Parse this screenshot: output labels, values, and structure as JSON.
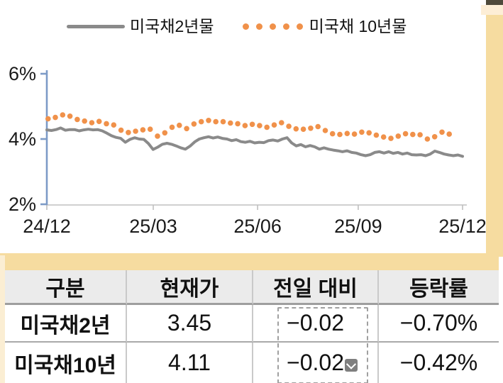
{
  "colors": {
    "orange": "#f0914a",
    "gray_line": "#8a8a8a",
    "axis_blue": "#7d9bc7",
    "axis_gray": "#c0c0c0",
    "tan_band": "#f6dca0",
    "cream": "#fdeed6",
    "dark_corner": "#4f4a3b",
    "header_bg": "#ebebeb"
  },
  "chart_data": {
    "type": "line",
    "title": "",
    "xlabel": "",
    "ylabel": "",
    "ylim": [
      2,
      6
    ],
    "grid": false,
    "legend_position": "top",
    "y_ticks": [
      6,
      4,
      2
    ],
    "y_tick_labels": [
      "6%",
      "4%",
      "2%"
    ],
    "x_ticks": [
      0,
      0.256,
      0.507,
      0.749,
      1
    ],
    "x_tick_labels": [
      "24/12",
      "25/03",
      "25/06",
      "25/09",
      "25/12"
    ],
    "axis_color_y": "#7d9bc7",
    "axis_color_x": "#c0c0c0",
    "series": [
      {
        "name": "미국채2년물",
        "type": "line",
        "color": "#8a8a8a",
        "x_start": 0,
        "x_end": 1,
        "values": [
          4.28,
          4.26,
          4.29,
          4.34,
          4.27,
          4.29,
          4.29,
          4.25,
          4.28,
          4.3,
          4.28,
          4.29,
          4.25,
          4.18,
          4.1,
          4.05,
          4.02,
          3.9,
          3.99,
          4.04,
          4.0,
          3.99,
          3.86,
          3.68,
          3.75,
          3.84,
          3.87,
          3.84,
          3.79,
          3.73,
          3.69,
          3.78,
          3.91,
          4.0,
          4.04,
          4.07,
          4.03,
          4.06,
          4.02,
          4.0,
          3.95,
          3.98,
          3.92,
          3.9,
          3.93,
          3.88,
          3.9,
          3.89,
          3.95,
          3.97,
          3.94,
          4.0,
          4.04,
          3.88,
          3.79,
          3.83,
          3.76,
          3.8,
          3.76,
          3.69,
          3.73,
          3.69,
          3.66,
          3.64,
          3.61,
          3.64,
          3.59,
          3.57,
          3.52,
          3.49,
          3.52,
          3.59,
          3.61,
          3.57,
          3.61,
          3.56,
          3.59,
          3.54,
          3.57,
          3.52,
          3.51,
          3.52,
          3.49,
          3.54,
          3.63,
          3.59,
          3.54,
          3.51,
          3.49,
          3.51,
          3.47
        ]
      },
      {
        "name": "미국채 10년물",
        "type": "dots",
        "color": "#f0914a",
        "x_start": 0.003,
        "x_end": 0.968,
        "values": [
          4.62,
          4.66,
          4.74,
          4.7,
          4.6,
          4.55,
          4.5,
          4.54,
          4.47,
          4.43,
          4.27,
          4.2,
          4.24,
          4.28,
          4.3,
          4.09,
          4.19,
          4.36,
          4.42,
          4.32,
          4.46,
          4.53,
          4.57,
          4.53,
          4.53,
          4.49,
          4.47,
          4.41,
          4.45,
          4.41,
          4.36,
          4.43,
          4.5,
          4.39,
          4.31,
          4.3,
          4.33,
          4.38,
          4.26,
          4.16,
          4.14,
          4.17,
          4.15,
          4.21,
          4.19,
          4.12,
          4.06,
          4.02,
          4.09,
          4.16,
          4.14,
          4.13,
          4.0,
          4.07,
          4.21,
          4.15
        ]
      }
    ]
  },
  "table": {
    "headers": [
      "구분",
      "현재가",
      "전일 대비",
      "등락률"
    ],
    "rows": [
      [
        "미국채2년",
        "3.45",
        "−0.02",
        "−0.70%"
      ],
      [
        "미국채10년",
        "4.11",
        "−0.02",
        "−0.42%"
      ]
    ]
  }
}
